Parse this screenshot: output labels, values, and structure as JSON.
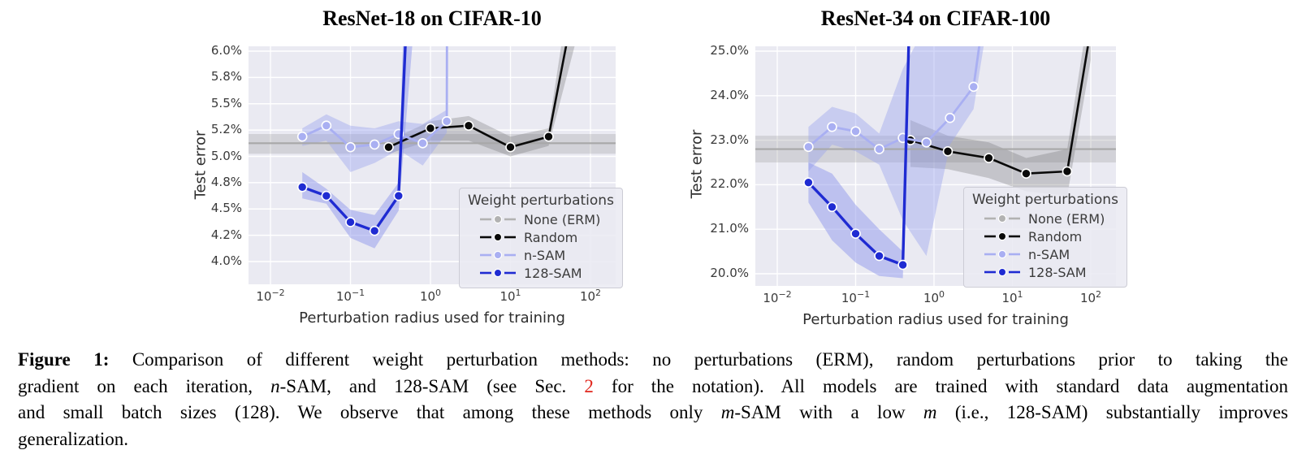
{
  "chart_data": [
    {
      "type": "line",
      "title": "ResNet-18 on CIFAR-10",
      "xlabel": "Perturbation radius used for training",
      "ylabel": "Test error",
      "x_scale": "log",
      "x_tick_base": "10",
      "x_tick_exponents": [
        "−2",
        "−1",
        "0",
        "1",
        "2"
      ],
      "x_tick_exp_values": [
        -2,
        -1,
        0,
        1,
        2
      ],
      "y_tick_labels": [
        "6.0%",
        "5.8%",
        "5.5%",
        "5.2%",
        "5.0%",
        "4.8%",
        "4.5%",
        "4.2%",
        "4.0%"
      ],
      "y_tick_values": [
        6.0,
        5.8,
        5.5,
        5.2,
        5.0,
        4.8,
        4.5,
        4.2,
        4.0
      ],
      "legend": {
        "title": "Weight perturbations",
        "entries": [
          {
            "label": "None (ERM)",
            "color": "#b2b2b2"
          },
          {
            "label": "Random",
            "color": "#0a0a0a"
          },
          {
            "label": "n-SAM",
            "color": "#a9aff2"
          },
          {
            "label": "128-SAM",
            "color": "#1f2bd2"
          }
        ]
      },
      "series": [
        {
          "name": "None (ERM)",
          "type": "hline",
          "y": 5.1,
          "lo": 5.02,
          "hi": 5.17,
          "color": "#a8a8a8",
          "band_color": "#8a8a8a",
          "band_opacity": 0.25,
          "lw": 2.2
        },
        {
          "name": "Random",
          "color": "#0a0a0a",
          "band_color": "#6e6e6e",
          "band_opacity": 0.3,
          "lw": 2.6,
          "x": [
            0.3,
            1,
            3,
            10,
            30,
            100
          ],
          "y": [
            5.07,
            5.22,
            5.25,
            5.07,
            5.15,
            7.0
          ],
          "lo": [
            5.02,
            5.12,
            5.12,
            5.0,
            5.08,
            6.5
          ],
          "hi": [
            5.12,
            5.3,
            5.36,
            5.15,
            5.22,
            7.5
          ]
        },
        {
          "name": "n-SAM",
          "color": "#a9aff2",
          "band_color": "#99a1ee",
          "band_opacity": 0.42,
          "lw": 2.8,
          "x": [
            0.025,
            0.05,
            0.1,
            0.2,
            0.4,
            0.8,
            1.6,
            3.2
          ],
          "y": [
            5.15,
            5.25,
            5.07,
            5.09,
            5.17,
            5.1,
            5.3,
            90
          ],
          "lo": [
            5.08,
            5.12,
            4.88,
            4.95,
            5.05,
            4.93,
            5.18,
            60
          ],
          "hi": [
            5.22,
            5.38,
            5.25,
            5.22,
            5.3,
            5.27,
            5.43,
            120
          ]
        },
        {
          "name": "128-SAM",
          "color": "#1f2bd2",
          "band_color": "#8f98ec",
          "band_opacity": 0.5,
          "lw": 3.4,
          "x": [
            0.025,
            0.05,
            0.1,
            0.2,
            0.4,
            0.8
          ],
          "y": [
            4.75,
            4.65,
            4.35,
            4.25,
            4.65,
            9.0
          ],
          "lo": [
            4.62,
            4.56,
            4.18,
            4.1,
            4.48,
            7.0
          ],
          "hi": [
            4.88,
            4.73,
            4.49,
            4.43,
            4.8,
            11.0
          ]
        }
      ]
    },
    {
      "type": "line",
      "title": "ResNet-34 on CIFAR-100",
      "xlabel": "Perturbation radius used for training",
      "ylabel": "Test error",
      "x_scale": "log",
      "x_tick_base": "10",
      "x_tick_exponents": [
        "−2",
        "−1",
        "0",
        "1",
        "2"
      ],
      "x_tick_exp_values": [
        -2,
        -1,
        0,
        1,
        2
      ],
      "y_tick_labels": [
        "25.0%",
        "24.0%",
        "23.0%",
        "22.0%",
        "21.0%",
        "20.0%"
      ],
      "y_tick_values": [
        25.0,
        24.0,
        23.0,
        22.0,
        21.0,
        20.0
      ],
      "legend": {
        "title": "Weight perturbations",
        "entries": [
          {
            "label": "None (ERM)",
            "color": "#b2b2b2"
          },
          {
            "label": "Random",
            "color": "#0a0a0a"
          },
          {
            "label": "n-SAM",
            "color": "#a9aff2"
          },
          {
            "label": "128-SAM",
            "color": "#1f2bd2"
          }
        ]
      },
      "series": [
        {
          "name": "None (ERM)",
          "type": "hline",
          "y": 22.8,
          "lo": 22.5,
          "hi": 23.1,
          "color": "#a8a8a8",
          "band_color": "#8a8a8a",
          "band_opacity": 0.25,
          "lw": 2.2
        },
        {
          "name": "Random",
          "color": "#0a0a0a",
          "band_color": "#6e6e6e",
          "band_opacity": 0.3,
          "lw": 2.6,
          "x": [
            0.5,
            1.5,
            5,
            15,
            50,
            100
          ],
          "y": [
            23.0,
            22.75,
            22.6,
            22.25,
            22.3,
            25.5
          ],
          "lo": [
            22.4,
            22.35,
            22.15,
            21.85,
            21.75,
            24.8
          ],
          "hi": [
            23.45,
            23.1,
            22.95,
            22.6,
            22.8,
            26.2
          ]
        },
        {
          "name": "n-SAM",
          "color": "#a9aff2",
          "band_color": "#99a1ee",
          "band_opacity": 0.42,
          "lw": 2.8,
          "x": [
            0.025,
            0.05,
            0.1,
            0.2,
            0.4,
            0.8,
            1.6,
            3.2,
            6.4
          ],
          "y": [
            22.85,
            23.3,
            23.2,
            22.8,
            23.05,
            22.95,
            23.5,
            24.2,
            28
          ],
          "lo": [
            22.3,
            22.9,
            22.75,
            22.45,
            21.2,
            20.4,
            22.9,
            23.7,
            27
          ],
          "hi": [
            23.3,
            23.75,
            23.6,
            23.15,
            24.6,
            25.6,
            25.2,
            25.6,
            29
          ]
        },
        {
          "name": "128-SAM",
          "color": "#1f2bd2",
          "band_color": "#8f98ec",
          "band_opacity": 0.5,
          "lw": 3.4,
          "x": [
            0.025,
            0.05,
            0.1,
            0.2,
            0.4,
            0.8
          ],
          "y": [
            22.05,
            21.5,
            20.9,
            20.4,
            20.2,
            40
          ],
          "lo": [
            21.6,
            20.75,
            20.25,
            19.95,
            19.9,
            38
          ],
          "hi": [
            22.5,
            22.25,
            21.55,
            21.0,
            20.5,
            42
          ]
        }
      ]
    }
  ],
  "caption": {
    "link_color": "#e0261c",
    "lines": [
      {
        "justify": true,
        "segments": [
          {
            "text": "Figure 1:",
            "style": "bold"
          },
          {
            "text": " Comparison of different weight perturbation methods: no perturbations (ERM), random perturbations prior to taking the",
            "style": "normal"
          }
        ]
      },
      {
        "justify": true,
        "segments": [
          {
            "text": "gradient on each iteration, ",
            "style": "normal"
          },
          {
            "text": "n",
            "style": "italic"
          },
          {
            "text": "-SAM, and 128-SAM (see Sec. ",
            "style": "normal"
          },
          {
            "text": "2",
            "style": "link"
          },
          {
            "text": " for the notation). All models are trained with standard data augmentation",
            "style": "normal"
          }
        ]
      },
      {
        "justify": true,
        "segments": [
          {
            "text": "and small batch sizes (128). We observe that among these methods only ",
            "style": "normal"
          },
          {
            "text": "m",
            "style": "italic"
          },
          {
            "text": "-SAM with a low ",
            "style": "normal"
          },
          {
            "text": "m",
            "style": "italic"
          },
          {
            "text": " (i.e., 128-SAM) substantially improves",
            "style": "normal"
          }
        ]
      },
      {
        "justify": false,
        "segments": [
          {
            "text": "generalization.",
            "style": "normal"
          }
        ]
      }
    ]
  },
  "style_colors": {
    "plot_background": "#eaeaf2",
    "grid": "#ffffff",
    "tick_text": "#3a3a3a"
  }
}
